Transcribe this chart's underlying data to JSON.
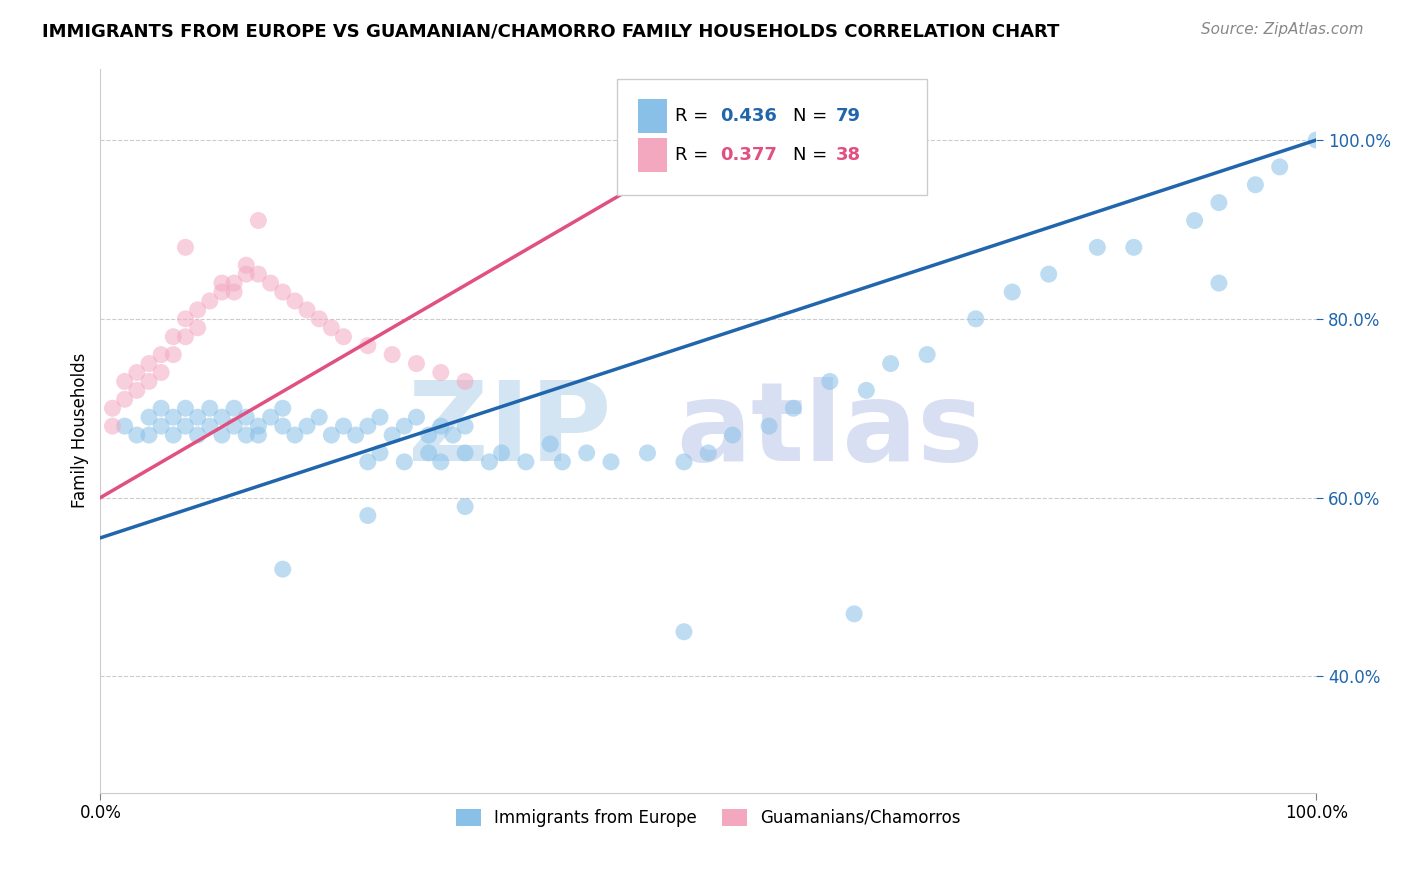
{
  "title": "IMMIGRANTS FROM EUROPE VS GUAMANIAN/CHAMORRO FAMILY HOUSEHOLDS CORRELATION CHART",
  "source": "Source: ZipAtlas.com",
  "ylabel": "Family Households",
  "legend_label_blue": "Immigrants from Europe",
  "legend_label_pink": "Guamanians/Chamorros",
  "blue_color": "#88c0e8",
  "pink_color": "#f4a8c0",
  "blue_line_color": "#2166ac",
  "pink_line_color": "#e05080",
  "watermark_zip": "ZIP",
  "watermark_atlas": "atlas",
  "blue_line": {
    "x0": 0.0,
    "y0": 0.555,
    "x1": 1.0,
    "y1": 1.0
  },
  "pink_line": {
    "x0": 0.0,
    "y0": 0.6,
    "x1": 0.48,
    "y1": 0.98
  },
  "ylim": [
    0.27,
    1.08
  ],
  "xlim": [
    0.0,
    1.0
  ],
  "yticks": [
    0.4,
    0.6,
    0.8,
    1.0
  ],
  "yticklabels": [
    "40.0%",
    "60.0%",
    "80.0%",
    "100.0%"
  ],
  "xticks": [
    0.0,
    1.0
  ],
  "xticklabels": [
    "0.0%",
    "100.0%"
  ],
  "blue_x": [
    0.02,
    0.03,
    0.04,
    0.04,
    0.05,
    0.05,
    0.06,
    0.06,
    0.07,
    0.07,
    0.08,
    0.08,
    0.09,
    0.09,
    0.1,
    0.1,
    0.11,
    0.11,
    0.12,
    0.12,
    0.13,
    0.13,
    0.14,
    0.15,
    0.15,
    0.16,
    0.17,
    0.18,
    0.19,
    0.2,
    0.21,
    0.22,
    0.23,
    0.24,
    0.25,
    0.26,
    0.27,
    0.28,
    0.29,
    0.3,
    0.22,
    0.23,
    0.25,
    0.27,
    0.28,
    0.3,
    0.32,
    0.33,
    0.35,
    0.37,
    0.38,
    0.4,
    0.42,
    0.45,
    0.48,
    0.5,
    0.52,
    0.55,
    0.57,
    0.6,
    0.63,
    0.65,
    0.68,
    0.72,
    0.75,
    0.78,
    0.82,
    0.85,
    0.9,
    0.92,
    0.95,
    0.97,
    1.0,
    0.15,
    0.22,
    0.3,
    0.48,
    0.62,
    0.92
  ],
  "blue_y": [
    0.68,
    0.67,
    0.67,
    0.69,
    0.68,
    0.7,
    0.67,
    0.69,
    0.68,
    0.7,
    0.67,
    0.69,
    0.68,
    0.7,
    0.67,
    0.69,
    0.68,
    0.7,
    0.67,
    0.69,
    0.68,
    0.67,
    0.69,
    0.68,
    0.7,
    0.67,
    0.68,
    0.69,
    0.67,
    0.68,
    0.67,
    0.68,
    0.69,
    0.67,
    0.68,
    0.69,
    0.67,
    0.68,
    0.67,
    0.68,
    0.64,
    0.65,
    0.64,
    0.65,
    0.64,
    0.65,
    0.64,
    0.65,
    0.64,
    0.66,
    0.64,
    0.65,
    0.64,
    0.65,
    0.64,
    0.65,
    0.67,
    0.68,
    0.7,
    0.73,
    0.72,
    0.75,
    0.76,
    0.8,
    0.83,
    0.85,
    0.88,
    0.88,
    0.91,
    0.93,
    0.95,
    0.97,
    1.0,
    0.52,
    0.58,
    0.59,
    0.45,
    0.47,
    0.84
  ],
  "pink_x": [
    0.01,
    0.01,
    0.02,
    0.02,
    0.03,
    0.03,
    0.04,
    0.04,
    0.05,
    0.05,
    0.06,
    0.06,
    0.07,
    0.07,
    0.08,
    0.08,
    0.09,
    0.1,
    0.1,
    0.11,
    0.11,
    0.12,
    0.12,
    0.13,
    0.14,
    0.15,
    0.16,
    0.17,
    0.18,
    0.19,
    0.2,
    0.22,
    0.24,
    0.26,
    0.28,
    0.3,
    0.07,
    0.13
  ],
  "pink_y": [
    0.68,
    0.7,
    0.71,
    0.73,
    0.72,
    0.74,
    0.73,
    0.75,
    0.74,
    0.76,
    0.76,
    0.78,
    0.78,
    0.8,
    0.79,
    0.81,
    0.82,
    0.83,
    0.84,
    0.83,
    0.84,
    0.85,
    0.86,
    0.85,
    0.84,
    0.83,
    0.82,
    0.81,
    0.8,
    0.79,
    0.78,
    0.77,
    0.76,
    0.75,
    0.74,
    0.73,
    0.88,
    0.91
  ],
  "figsize": [
    14.06,
    8.92
  ],
  "dpi": 100
}
